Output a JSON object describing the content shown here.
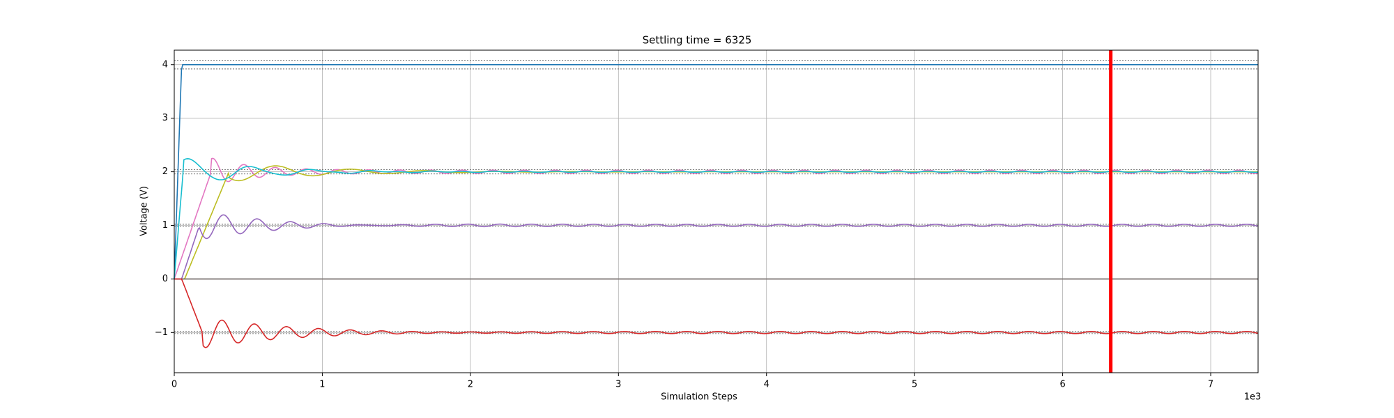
{
  "chart_data": {
    "type": "line",
    "title": "Settling time = 6325",
    "xlabel": "Simulation Steps",
    "ylabel": "Voltage (V)",
    "x_offset_label": "1e3",
    "xlim": [
      0,
      7.32
    ],
    "ylim": [
      -1.75,
      4.27
    ],
    "x_ticks": [
      0,
      1,
      2,
      3,
      4,
      5,
      6,
      7
    ],
    "x_tick_labels": [
      "0",
      "1",
      "2",
      "3",
      "4",
      "5",
      "6",
      "7"
    ],
    "y_ticks": [
      -1,
      0,
      1,
      2,
      3,
      4
    ],
    "y_tick_labels": [
      "−1",
      "0",
      "1",
      "2",
      "3",
      "4"
    ],
    "grid": true,
    "settling_marker": {
      "x": 6.325,
      "color": "#ff0000"
    },
    "tolerance_bands": [
      {
        "center": 4,
        "halfwidth": 0.08
      },
      {
        "center": 2,
        "halfwidth": 0.04
      },
      {
        "center": 1,
        "halfwidth": 0.02
      },
      {
        "center": 0,
        "halfwidth": 0.0
      },
      {
        "center": -1,
        "halfwidth": 0.02
      }
    ],
    "series": [
      {
        "color": "#1f77b4",
        "target": 4,
        "start": 0,
        "delay": 0.0,
        "rise": 0.05,
        "amp": 0,
        "decay": 1,
        "period": 0.21,
        "resid": 0
      },
      {
        "color": "#e377c2",
        "target": 2,
        "start": 0,
        "delay": 0.0,
        "rise": 0.25,
        "amp": 0.55,
        "decay": 3.5,
        "period": 0.21,
        "resid": 0.03
      },
      {
        "color": "#bcbd22",
        "target": 2,
        "start": 0,
        "delay": 0.07,
        "rise": 0.3,
        "amp": 0.3,
        "decay": 1.6,
        "period": 0.5,
        "resid": 0.0
      },
      {
        "color": "#17becf",
        "target": 2,
        "start": 0,
        "delay": 0.0,
        "rise": 0.06,
        "amp": 0.3,
        "decay": 2.2,
        "period": 0.42,
        "resid": 0.01
      },
      {
        "color": "#9467bd",
        "target": 1,
        "start": 0,
        "delay": 0.05,
        "rise": 0.12,
        "amp": 0.32,
        "decay": 2.0,
        "period": 0.23,
        "resid": 0.02
      },
      {
        "color": "#8c564b",
        "target": 0,
        "start": 0,
        "delay": 0.0,
        "rise": 0.05,
        "amp": 0,
        "decay": 1,
        "period": 0.2,
        "resid": 0
      },
      {
        "color": "#7f7f7f",
        "target": 0,
        "start": 0,
        "delay": 0.0,
        "rise": 0.05,
        "amp": 0,
        "decay": 1,
        "period": 0.2,
        "resid": 0
      },
      {
        "color": "#d62728",
        "target": -1,
        "start": 0,
        "delay": 0.05,
        "rise": 0.14,
        "amp": 0.35,
        "decay": 1.8,
        "period": 0.22,
        "resid": 0.02
      }
    ]
  }
}
